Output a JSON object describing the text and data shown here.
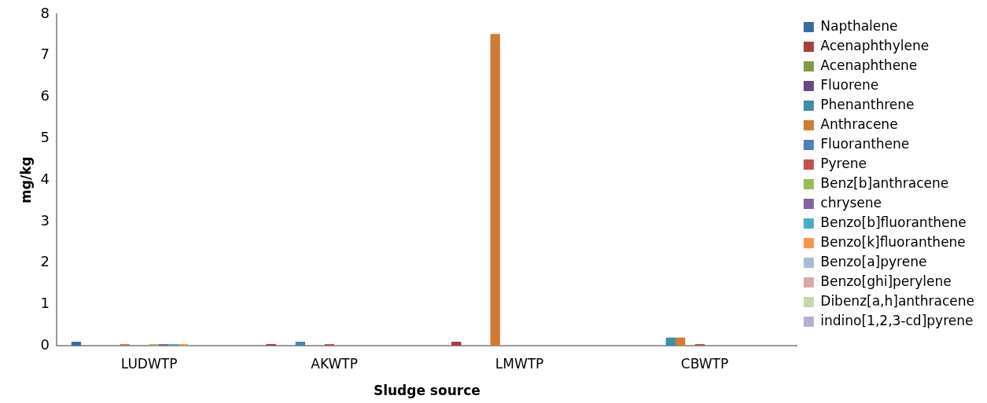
{
  "chart_data": {
    "type": "bar",
    "xlabel": "Sludge source",
    "ylabel": "mg/kg",
    "categories": [
      "LUDWTP",
      "AKWTP",
      "LMWTP",
      "CBWTP"
    ],
    "ylim": [
      0,
      8
    ],
    "yticks": [
      0,
      1,
      2,
      3,
      4,
      5,
      6,
      7,
      8
    ],
    "grid": false,
    "legend": "right",
    "series": [
      {
        "name": "Napthalene",
        "color": "#3a6aa0",
        "values": [
          0.1,
          0,
          0,
          0
        ]
      },
      {
        "name": "Acenaphthylene",
        "color": "#a33f3d",
        "values": [
          0,
          0.04,
          0.1,
          0
        ]
      },
      {
        "name": "Acenaphthene",
        "color": "#7f9a48",
        "values": [
          0,
          0,
          0,
          0
        ]
      },
      {
        "name": "Fluorene",
        "color": "#644b87",
        "values": [
          0,
          0,
          0,
          0
        ]
      },
      {
        "name": "Phenanthrene",
        "color": "#3b8ea5",
        "values": [
          0,
          0.1,
          0,
          0.2
        ]
      },
      {
        "name": "Anthracene",
        "color": "#d07b36",
        "values": [
          0.04,
          0,
          7.52,
          0.2
        ]
      },
      {
        "name": "Fluoranthene",
        "color": "#4b7fc0",
        "values": [
          0,
          0,
          0,
          0
        ]
      },
      {
        "name": "Pyrene",
        "color": "#c3504d",
        "values": [
          0,
          0.04,
          0,
          0.04
        ]
      },
      {
        "name": "Benz[b]anthracene",
        "color": "#9bbb59",
        "values": [
          0.04,
          0,
          0,
          0
        ]
      },
      {
        "name": "chrysene",
        "color": "#8064a2",
        "values": [
          0.04,
          0,
          0,
          0
        ]
      },
      {
        "name": "Benzo[b]fluoranthene",
        "color": "#4bacc6",
        "values": [
          0.04,
          0,
          0,
          0
        ]
      },
      {
        "name": "Benzo[k]fluoranthene",
        "color": "#f79646",
        "values": [
          0.04,
          0,
          0,
          0
        ]
      },
      {
        "name": "Benzo[a]pyrene",
        "color": "#a8bbd9",
        "values": [
          0,
          0,
          0,
          0
        ]
      },
      {
        "name": "Benzo[ghi]perylene",
        "color": "#dba8a7",
        "values": [
          0,
          0,
          0,
          0
        ]
      },
      {
        "name": "Dibenz[a,h]anthracene",
        "color": "#c4d7a9",
        "values": [
          0,
          0,
          0,
          0
        ]
      },
      {
        "name": "indino[1,2,3-cd]pyrene",
        "color": "#b8afcc",
        "values": [
          0,
          0,
          0,
          0
        ]
      }
    ]
  }
}
